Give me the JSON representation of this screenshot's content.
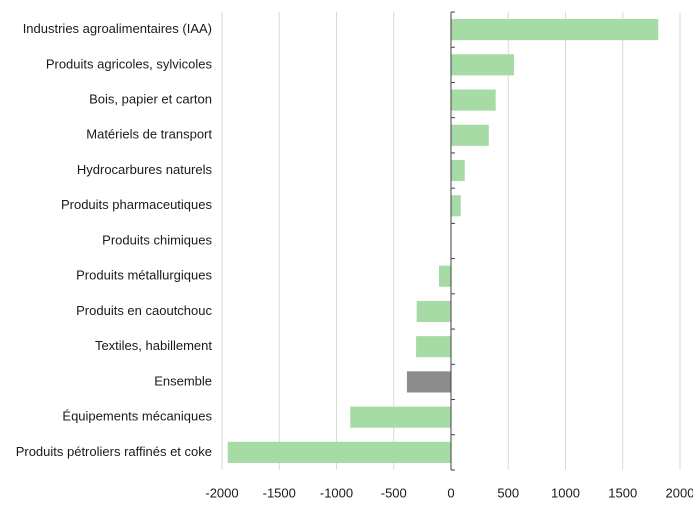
{
  "chart_data": {
    "type": "hbar",
    "categories": [
      "Industries agroalimentaires (IAA)",
      "Produits agricoles, sylvicoles",
      "Bois, papier et carton",
      "Matériels de transport",
      "Hydrocarbures naturels",
      "Produits pharmaceutiques",
      "Produits chimiques",
      "Produits métallurgiques",
      "Produits en caoutchouc",
      "Textiles, habillement",
      "Ensemble",
      "Équipements mécaniques",
      "Produits pétroliers raffinés et coke"
    ],
    "values": [
      1810,
      550,
      390,
      330,
      120,
      85,
      0,
      -105,
      -300,
      -305,
      -385,
      -880,
      -1950
    ],
    "colors": [
      "#a6dba6",
      "#a6dba6",
      "#a6dba6",
      "#a6dba6",
      "#a6dba6",
      "#a6dba6",
      "#a6dba6",
      "#a6dba6",
      "#a6dba6",
      "#a6dba6",
      "#8c8c8c",
      "#a6dba6",
      "#a6dba6"
    ],
    "xlim": [
      -2000,
      2000
    ],
    "xticks": [
      -2000,
      -1500,
      -1000,
      -500,
      0,
      500,
      1000,
      1500,
      2000
    ],
    "grid": true
  }
}
